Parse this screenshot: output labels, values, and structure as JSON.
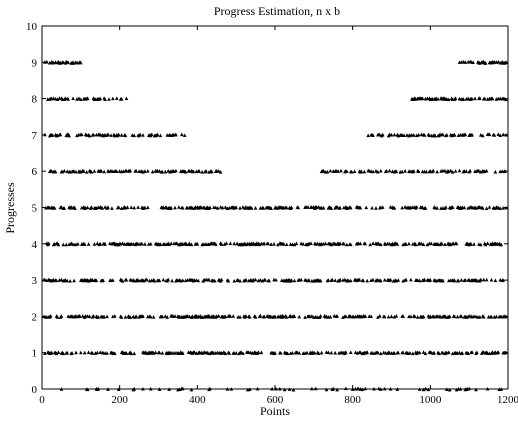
{
  "chart_data": {
    "type": "scatter",
    "title": "Progress Estimation, n x b",
    "xlabel": "Points",
    "ylabel": "Progresses",
    "xlim": [
      0,
      1200
    ],
    "ylim": [
      0,
      10
    ],
    "xticks": [
      0,
      200,
      400,
      600,
      800,
      1000,
      1200
    ],
    "yticks": [
      0,
      1,
      2,
      3,
      4,
      5,
      6,
      7,
      8,
      9,
      10
    ],
    "grid": false,
    "marker": "triangle",
    "color": "#000000",
    "levels": [
      {
        "y": 0,
        "x_ranges": [
          [
            0,
            1200
          ]
        ],
        "density": 0.25
      },
      {
        "y": 1,
        "x_ranges": [
          [
            0,
            1200
          ]
        ],
        "density": 0.95
      },
      {
        "y": 2,
        "x_ranges": [
          [
            0,
            1200
          ]
        ],
        "density": 0.95
      },
      {
        "y": 3,
        "x_ranges": [
          [
            0,
            1200
          ]
        ],
        "density": 0.95
      },
      {
        "y": 4,
        "x_ranges": [
          [
            0,
            1200
          ]
        ],
        "density": 0.95
      },
      {
        "y": 5,
        "x_ranges": [
          [
            0,
            1200
          ]
        ],
        "density": 0.85
      },
      {
        "y": 6,
        "x_ranges": [
          [
            0,
            460
          ],
          [
            720,
            1200
          ]
        ],
        "density": 0.85
      },
      {
        "y": 7,
        "x_ranges": [
          [
            0,
            370
          ],
          [
            840,
            1200
          ]
        ],
        "density": 0.85
      },
      {
        "y": 8,
        "x_ranges": [
          [
            0,
            225
          ],
          [
            950,
            1200
          ]
        ],
        "density": 0.9
      },
      {
        "y": 9,
        "x_ranges": [
          [
            0,
            100
          ],
          [
            1075,
            1200
          ]
        ],
        "density": 0.9
      }
    ]
  }
}
